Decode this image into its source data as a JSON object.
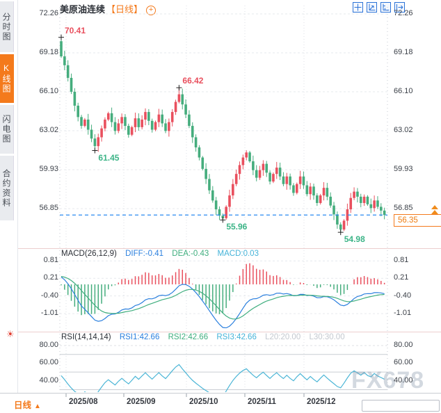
{
  "sidebar": {
    "items": [
      {
        "label": "分时图",
        "active": false
      },
      {
        "label": "K线图",
        "active": true
      },
      {
        "label": "闪电图",
        "active": false
      },
      {
        "label": "合约资料",
        "active": false
      }
    ]
  },
  "header": {
    "title": "美原油连续",
    "period_tag": "【日线】"
  },
  "toolbar": {
    "icons": [
      "crosshair-tool",
      "fit-chart",
      "axis-scale",
      "pan-right"
    ]
  },
  "footer": {
    "period_label": "日线",
    "period_arrow": "▲",
    "watermark": "FX678"
  },
  "colors": {
    "accent_orange": "#f47a1c",
    "up_red": "#e9505e",
    "down_green": "#45ad7d",
    "diff_blue": "#2a7fde",
    "dea_green": "#3fae7e",
    "macd_cyan": "#45b3d8",
    "rsi_cyan": "#4ab5d6",
    "current_line_blue": "#2a8af0"
  },
  "chart_data": {
    "type": "candlestick",
    "symbol": "美原油连续",
    "interval": "日线",
    "y_axis_labels": [
      "72.26",
      "69.18",
      "66.10",
      "63.02",
      "59.93",
      "56.85"
    ],
    "y_axis_values": [
      72.26,
      69.18,
      66.1,
      63.02,
      59.93,
      56.85
    ],
    "x_axis_labels": [
      "2025/08",
      "2025/09",
      "2025/10",
      "2025/11",
      "2025/12"
    ],
    "current_price": 56.35,
    "current_price_label": "56.35",
    "first_open": 70.1,
    "closes": [
      68.9,
      68.2,
      67.2,
      66.1,
      65.0,
      64.1,
      63.4,
      63.9,
      63.1,
      62.4,
      61.8,
      62.5,
      63.2,
      63.9,
      64.4,
      63.7,
      63.0,
      63.6,
      64.1,
      63.4,
      62.7,
      63.3,
      64.0,
      63.3,
      63.9,
      64.5,
      63.8,
      63.1,
      63.7,
      64.3,
      63.6,
      63.0,
      63.7,
      64.5,
      65.3,
      65.9,
      65.1,
      64.3,
      63.4,
      62.5,
      61.7,
      60.9,
      60.0,
      59.2,
      58.3,
      57.5,
      56.8,
      56.3,
      56.1,
      57.0,
      57.9,
      58.8,
      59.6,
      60.3,
      60.9,
      61.3,
      60.6,
      59.9,
      59.3,
      59.9,
      60.4,
      59.7,
      59.0,
      59.6,
      60.1,
      59.4,
      58.8,
      59.4,
      58.7,
      58.1,
      58.8,
      59.4,
      58.7,
      58.0,
      58.6,
      57.9,
      57.3,
      57.9,
      58.5,
      57.8,
      57.1,
      56.4,
      55.6,
      55.2,
      55.9,
      56.8,
      57.7,
      58.2,
      57.8,
      57.3,
      57.8,
      57.2,
      56.9,
      57.5,
      57.0,
      56.7,
      56.35
    ],
    "annotations": [
      {
        "index": 0,
        "kind": "high",
        "price": 70.41,
        "text": "70.41"
      },
      {
        "index": 10,
        "kind": "low",
        "price": 61.45,
        "text": "61.45"
      },
      {
        "index": 35,
        "kind": "high",
        "price": 66.42,
        "text": "66.42"
      },
      {
        "index": 48,
        "kind": "low",
        "price": 55.96,
        "text": "55.96"
      },
      {
        "index": 83,
        "kind": "low",
        "price": 54.98,
        "text": "54.98"
      }
    ],
    "macd": {
      "title": "MACD(26,12,9)",
      "diff": -0.41,
      "dea": -0.43,
      "macd": 0.03,
      "diff_label": "DIFF:-0.41",
      "dea_label": "DEA:-0.43",
      "macd_label": "MACD:0.03",
      "y_axis_labels": [
        "0.81",
        "0.21",
        "-0.40",
        "-1.01"
      ],
      "y_axis_values": [
        0.81,
        0.21,
        -0.4,
        -1.01
      ]
    },
    "rsi": {
      "title": "RSI(14,14,14)",
      "rsi1": 42.66,
      "rsi2": 42.66,
      "rsi3": 42.66,
      "l20": 20.0,
      "l30": 30.0,
      "labels": [
        "RSI1:42.66",
        "RSI2:42.66",
        "RSI3:42.66",
        "L20:20.00",
        "L30:30.00"
      ],
      "y_axis_labels": [
        "80.00",
        "60.00",
        "40.00"
      ],
      "y_axis_values": [
        80,
        60,
        40
      ],
      "guide_lines": [
        70,
        50,
        30
      ]
    }
  }
}
